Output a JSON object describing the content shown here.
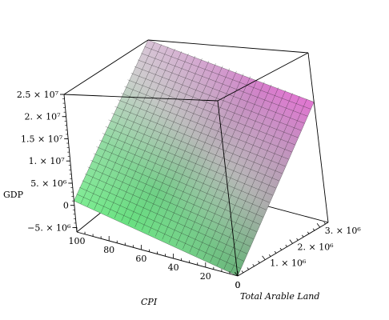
{
  "chart_data": {
    "type": "surface3d",
    "xlabel": "CPI",
    "ylabel": "Total Arable Land",
    "zlabel": "GDP",
    "x_range": [
      0,
      100
    ],
    "y_range": [
      0,
      3300000
    ],
    "z_range": [
      -6000000,
      25000000
    ],
    "x_ticks": [
      {
        "value": 100,
        "label": "100"
      },
      {
        "value": 80,
        "label": "80"
      },
      {
        "value": 60,
        "label": "60"
      },
      {
        "value": 40,
        "label": "40"
      },
      {
        "value": 20,
        "label": "20"
      },
      {
        "value": 0,
        "label": "0"
      }
    ],
    "y_ticks": [
      {
        "value": 1000000,
        "label": "1. × 10⁶"
      },
      {
        "value": 2000000,
        "label": "2. × 10⁶"
      },
      {
        "value": 3000000,
        "label": "3. × 10⁶"
      }
    ],
    "z_ticks": [
      {
        "value": 25000000,
        "label": "2.5 × 10⁷"
      },
      {
        "value": 20000000,
        "label": "2. × 10⁷"
      },
      {
        "value": 15000000,
        "label": "1.5 × 10⁷"
      },
      {
        "value": 10000000,
        "label": "1. × 10⁷"
      },
      {
        "value": 5000000,
        "label": "5. × 10⁶"
      },
      {
        "value": 0,
        "label": "0"
      },
      {
        "value": -5000000,
        "label": "−5. × 10⁶"
      }
    ],
    "surface": {
      "description_free_grid": true,
      "grid_divisions": 24,
      "corners": [
        {
          "x": 0,
          "y": 0,
          "z": -6000000
        },
        {
          "x": 100,
          "y": 0,
          "z": 1000000
        },
        {
          "x": 0,
          "y": 3300000,
          "z": 16000000
        },
        {
          "x": 100,
          "y": 3300000,
          "z": 25000000
        }
      ]
    },
    "colors": {
      "surface_low": "#5fff7a",
      "surface_mid": "#d8d8d8",
      "surface_high": "#ff55dd",
      "grid": "#1a1a1a",
      "box": "#000000"
    }
  }
}
